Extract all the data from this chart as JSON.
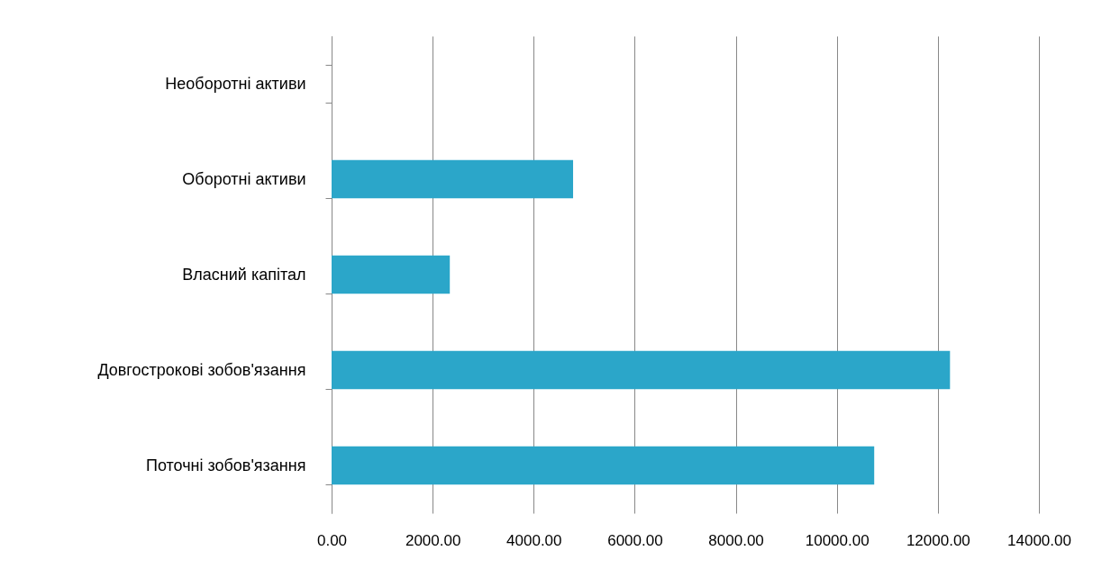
{
  "chart_data": {
    "type": "bar",
    "orientation": "horizontal",
    "categories": [
      "Необоротні активи",
      "Оборотні активи",
      "Власний капітал",
      "Довгострокові зобов'язання",
      "Поточні зобов'язання"
    ],
    "values": [
      0,
      4780,
      2340,
      12240,
      10740
    ],
    "color": "#2ba6c9",
    "xlim": [
      0,
      14000
    ],
    "xticks": [
      {
        "value": 0,
        "label": "0.00"
      },
      {
        "value": 2000,
        "label": "2000.00"
      },
      {
        "value": 4000,
        "label": "4000.00"
      },
      {
        "value": 6000,
        "label": "6000.00"
      },
      {
        "value": 8000,
        "label": "8000.00"
      },
      {
        "value": 10000,
        "label": "10000.00"
      },
      {
        "value": 12000,
        "label": "12000.00"
      },
      {
        "value": 14000,
        "label": "14000.00"
      }
    ],
    "grid": "x"
  }
}
